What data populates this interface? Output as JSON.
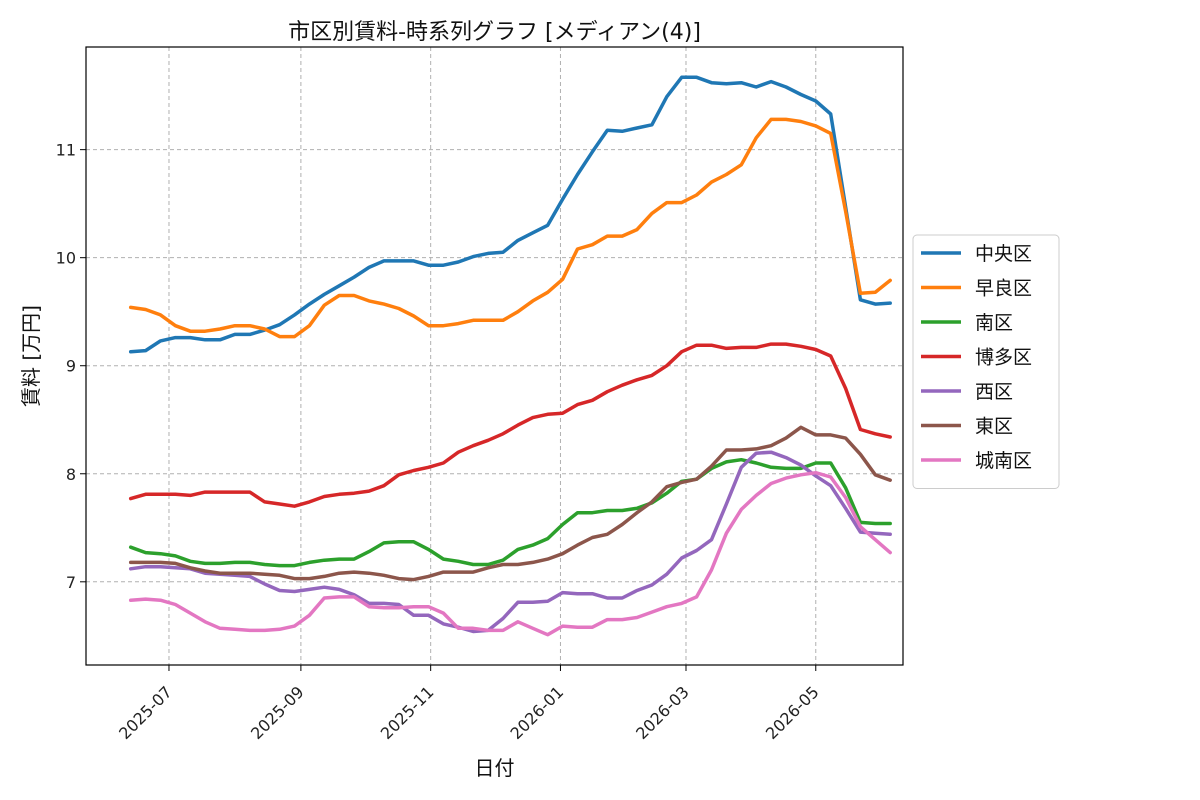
{
  "chart_data": {
    "type": "line",
    "title": "市区別賃料-時系列グラフ [メディアン(4)]",
    "xlabel": "日付",
    "ylabel": "賃料 [万円]",
    "x_tick_labels": [
      "2025-07",
      "2025-09",
      "2025-11",
      "2026-01",
      "2026-03",
      "2026-05"
    ],
    "x_tick_dates": [
      "2025-07-01",
      "2025-09-01",
      "2025-11-01",
      "2026-01-01",
      "2026-03-01",
      "2026-05-01"
    ],
    "y_ticks": [
      7,
      8,
      9,
      10,
      11
    ],
    "xlim": [
      "2025-05-23",
      "2026-06-11"
    ],
    "ylim": [
      6.23,
      11.95
    ],
    "grid": true,
    "legend_position": "center-right-outside",
    "x": [
      "2025-06-13",
      "2025-06-20",
      "2025-06-27",
      "2025-07-04",
      "2025-07-11",
      "2025-07-18",
      "2025-07-25",
      "2025-08-01",
      "2025-08-08",
      "2025-08-15",
      "2025-08-22",
      "2025-08-29",
      "2025-09-05",
      "2025-09-12",
      "2025-09-19",
      "2025-09-26",
      "2025-10-03",
      "2025-10-10",
      "2025-10-17",
      "2025-10-24",
      "2025-10-31",
      "2025-11-07",
      "2025-11-14",
      "2025-11-21",
      "2025-11-28",
      "2025-12-05",
      "2025-12-12",
      "2025-12-19",
      "2025-12-26",
      "2026-01-02",
      "2026-01-09",
      "2026-01-16",
      "2026-01-23",
      "2026-01-30",
      "2026-02-06",
      "2026-02-13",
      "2026-02-20",
      "2026-02-27",
      "2026-03-06",
      "2026-03-13",
      "2026-03-20",
      "2026-03-27",
      "2026-04-03",
      "2026-04-10",
      "2026-04-17",
      "2026-04-24",
      "2026-05-01",
      "2026-05-08",
      "2026-05-15",
      "2026-05-22",
      "2026-05-29",
      "2026-06-05"
    ],
    "series": [
      {
        "name": "中央区",
        "color": "#1f77b4",
        "values": [
          9.13,
          9.14,
          9.23,
          9.26,
          9.26,
          9.24,
          9.24,
          9.29,
          9.29,
          9.33,
          9.38,
          9.47,
          9.57,
          9.66,
          9.74,
          9.82,
          9.91,
          9.97,
          9.97,
          9.97,
          9.93,
          9.93,
          9.96,
          10.01,
          10.04,
          10.05,
          10.16,
          10.23,
          10.3,
          10.54,
          10.77,
          10.98,
          11.18,
          11.17,
          11.2,
          11.23,
          11.49,
          11.67,
          11.67,
          11.62,
          11.61,
          11.62,
          11.58,
          11.63,
          11.58,
          11.51,
          11.45,
          11.33,
          10.47,
          9.61,
          9.57,
          9.58
        ]
      },
      {
        "name": "早良区",
        "color": "#ff7f0e",
        "values": [
          9.54,
          9.52,
          9.47,
          9.37,
          9.32,
          9.32,
          9.34,
          9.37,
          9.37,
          9.34,
          9.27,
          9.27,
          9.37,
          9.56,
          9.65,
          9.65,
          9.6,
          9.57,
          9.53,
          9.46,
          9.37,
          9.37,
          9.39,
          9.42,
          9.42,
          9.42,
          9.5,
          9.6,
          9.68,
          9.8,
          10.08,
          10.12,
          10.2,
          10.2,
          10.26,
          10.41,
          10.51,
          10.51,
          10.58,
          10.7,
          10.77,
          10.86,
          11.11,
          11.28,
          11.28,
          11.26,
          11.22,
          11.15,
          10.43,
          9.67,
          9.68,
          9.79
        ]
      },
      {
        "name": "南区",
        "color": "#2ca02c",
        "values": [
          7.32,
          7.27,
          7.26,
          7.24,
          7.19,
          7.17,
          7.17,
          7.18,
          7.18,
          7.16,
          7.15,
          7.15,
          7.18,
          7.2,
          7.21,
          7.21,
          7.28,
          7.36,
          7.37,
          7.37,
          7.3,
          7.21,
          7.19,
          7.16,
          7.16,
          7.2,
          7.3,
          7.34,
          7.4,
          7.53,
          7.64,
          7.64,
          7.66,
          7.66,
          7.68,
          7.73,
          7.82,
          7.93,
          7.95,
          8.05,
          8.11,
          8.13,
          8.1,
          8.06,
          8.05,
          8.05,
          8.1,
          8.1,
          7.87,
          7.55,
          7.54,
          7.54
        ]
      },
      {
        "name": "博多区",
        "color": "#d62728",
        "values": [
          7.77,
          7.81,
          7.81,
          7.81,
          7.8,
          7.83,
          7.83,
          7.83,
          7.83,
          7.74,
          7.72,
          7.7,
          7.74,
          7.79,
          7.81,
          7.82,
          7.84,
          7.89,
          7.99,
          8.03,
          8.06,
          8.1,
          8.2,
          8.26,
          8.31,
          8.37,
          8.45,
          8.52,
          8.55,
          8.56,
          8.64,
          8.68,
          8.76,
          8.82,
          8.87,
          8.91,
          9.0,
          9.13,
          9.19,
          9.19,
          9.16,
          9.17,
          9.17,
          9.2,
          9.2,
          9.18,
          9.15,
          9.09,
          8.79,
          8.41,
          8.37,
          8.34
        ]
      },
      {
        "name": "西区",
        "color": "#9467bd",
        "values": [
          7.12,
          7.14,
          7.14,
          7.13,
          7.12,
          7.08,
          7.07,
          7.06,
          7.05,
          6.98,
          6.92,
          6.91,
          6.93,
          6.95,
          6.93,
          6.88,
          6.8,
          6.8,
          6.79,
          6.69,
          6.69,
          6.61,
          6.58,
          6.54,
          6.55,
          6.66,
          6.81,
          6.81,
          6.82,
          6.9,
          6.89,
          6.89,
          6.85,
          6.85,
          6.92,
          6.97,
          7.07,
          7.22,
          7.29,
          7.39,
          7.72,
          8.06,
          8.19,
          8.2,
          8.15,
          8.08,
          7.98,
          7.89,
          7.68,
          7.46,
          7.45,
          7.44
        ]
      },
      {
        "name": "東区",
        "color": "#8c564b",
        "values": [
          7.18,
          7.18,
          7.18,
          7.17,
          7.13,
          7.1,
          7.08,
          7.08,
          7.08,
          7.07,
          7.06,
          7.03,
          7.03,
          7.05,
          7.08,
          7.09,
          7.08,
          7.06,
          7.03,
          7.02,
          7.05,
          7.09,
          7.09,
          7.09,
          7.13,
          7.16,
          7.16,
          7.18,
          7.21,
          7.26,
          7.34,
          7.41,
          7.44,
          7.53,
          7.64,
          7.74,
          7.88,
          7.92,
          7.95,
          8.07,
          8.22,
          8.22,
          8.23,
          8.26,
          8.33,
          8.43,
          8.36,
          8.36,
          8.33,
          8.18,
          7.99,
          7.94
        ]
      },
      {
        "name": "城南区",
        "color": "#e377c2",
        "values": [
          6.83,
          6.84,
          6.83,
          6.79,
          6.71,
          6.63,
          6.57,
          6.56,
          6.55,
          6.55,
          6.56,
          6.59,
          6.69,
          6.85,
          6.86,
          6.86,
          6.77,
          6.76,
          6.76,
          6.77,
          6.77,
          6.71,
          6.57,
          6.57,
          6.55,
          6.55,
          6.63,
          6.57,
          6.51,
          6.59,
          6.58,
          6.58,
          6.65,
          6.65,
          6.67,
          6.72,
          6.77,
          6.8,
          6.86,
          7.11,
          7.45,
          7.67,
          7.8,
          7.91,
          7.96,
          7.99,
          8.01,
          7.97,
          7.78,
          7.51,
          7.39,
          7.27
        ]
      }
    ]
  }
}
